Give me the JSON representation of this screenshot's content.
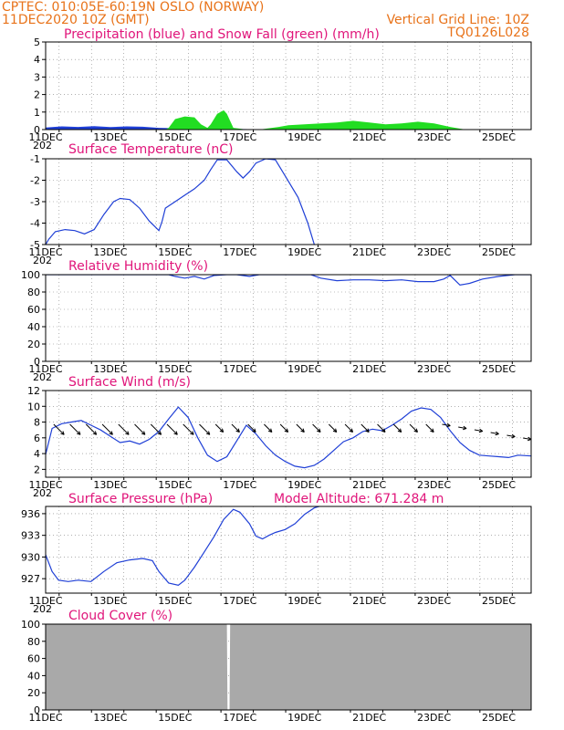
{
  "header": {
    "line1": "CPTEC:  010:05E-60:19N  OSLO (NORWAY)",
    "line2": "11DEC2020 10Z (GMT)",
    "grid_note": "Vertical Grid Line: 10Z",
    "model_code": "TQ0126L028"
  },
  "colors": {
    "header": "#e8731a",
    "title": "#e0157a",
    "line": "#1f3fd6",
    "snow": "#22dd22",
    "cloud": "#a9a9a9"
  },
  "x_axis": {
    "tick_labels": [
      "11DEC",
      "13DEC",
      "15DEC",
      "17DEC",
      "19DEC",
      "21DEC",
      "23DEC",
      "25DEC"
    ],
    "year_fragment": "202"
  },
  "chart_data": [
    {
      "type": "area",
      "title": "Precipitation (blue) and Snow Fall (green) (mm/h)",
      "ylim": [
        0,
        5
      ],
      "yticks": [
        "0",
        "1",
        "2",
        "3",
        "4",
        "5"
      ],
      "x_unit": "days since 11DEC 00Z",
      "series": [
        {
          "name": "Precipitation",
          "x": [
            0,
            0.5,
            1,
            1.5,
            2,
            2.5,
            3,
            3.5,
            4,
            4.5,
            5,
            5.5,
            6,
            6.5,
            7,
            7.5,
            8,
            8.5,
            9,
            9.5,
            10,
            10.5,
            11,
            11.5,
            12,
            12.5,
            13,
            13.5,
            14,
            14.5,
            15
          ],
          "values": [
            0.12,
            0.18,
            0.15,
            0.2,
            0.14,
            0.18,
            0.16,
            0.1,
            0.08,
            0.05,
            0.05,
            0.04,
            0.03,
            0.02,
            0.02,
            0.04,
            0.06,
            0.05,
            0.05,
            0.06,
            0.05,
            0.04,
            0.05,
            0.06,
            0.05,
            0.02,
            0.01,
            0,
            0,
            0,
            0
          ]
        },
        {
          "name": "Snow Fall",
          "x": [
            0,
            3.7,
            3.8,
            4,
            4.3,
            4.6,
            4.8,
            5,
            5.1,
            5.3,
            5.5,
            5.6,
            5.8,
            6,
            6.2,
            6.4,
            6.6,
            7.2,
            7.5,
            8,
            8.5,
            9,
            9.5,
            10,
            10.5,
            11,
            11.5,
            12,
            12.5,
            12.8,
            13,
            15
          ],
          "values": [
            0,
            0,
            0.1,
            0.6,
            0.75,
            0.7,
            0.3,
            0.1,
            0.3,
            0.9,
            1.1,
            0.9,
            0.1,
            0.05,
            0,
            0,
            0,
            0.15,
            0.25,
            0.3,
            0.35,
            0.4,
            0.5,
            0.4,
            0.3,
            0.35,
            0.45,
            0.35,
            0.15,
            0.05,
            0,
            0
          ]
        }
      ]
    },
    {
      "type": "line",
      "title": "Surface Temperature (nC)",
      "ylim": [
        -5,
        -1
      ],
      "yticks": [
        "-5",
        "-4",
        "-3",
        "-2",
        "-1"
      ],
      "x_unit": "days since 11DEC 00Z",
      "series": [
        {
          "name": "Temperature",
          "x": [
            0,
            0.1,
            0.3,
            0.6,
            0.9,
            1.2,
            1.5,
            1.8,
            2.1,
            2.3,
            2.6,
            2.9,
            3.2,
            3.4,
            3.5,
            3.6,
            3.7,
            4.0,
            4.3,
            4.6,
            4.9,
            5.1,
            5.3,
            5.6,
            5.9,
            6.1,
            6.3,
            6.5,
            6.8,
            7.1,
            7.4,
            7.8,
            8.1,
            8.3
          ],
          "values": [
            -5.0,
            -4.75,
            -4.4,
            -4.3,
            -4.35,
            -4.5,
            -4.3,
            -3.6,
            -3.0,
            -2.85,
            -2.9,
            -3.3,
            -3.9,
            -4.2,
            -4.35,
            -3.9,
            -3.3,
            -3.0,
            -2.7,
            -2.4,
            -2.0,
            -1.5,
            -1.05,
            -1.05,
            -1.6,
            -1.9,
            -1.6,
            -1.2,
            -1.0,
            -1.05,
            -1.8,
            -2.8,
            -4.0,
            -5.0
          ]
        }
      ]
    },
    {
      "type": "line",
      "title": "Relative Humidity (%)",
      "ylim": [
        0,
        100
      ],
      "yticks": [
        "0",
        "20",
        "40",
        "60",
        "80",
        "100"
      ],
      "x_unit": "days since 11DEC 00Z",
      "series": [
        {
          "name": "Relative Humidity",
          "x": [
            0,
            3.8,
            4,
            4.3,
            4.6,
            4.9,
            5.2,
            5.6,
            5.9,
            6.3,
            6.6,
            7,
            8.2,
            8.5,
            9,
            9.5,
            10,
            10.5,
            11,
            11.5,
            12,
            12.3,
            12.5,
            12.8,
            13.1,
            13.5,
            14,
            14.5,
            15
          ],
          "values": [
            100,
            100,
            98,
            96,
            98,
            95,
            99,
            100,
            100,
            98,
            100,
            100,
            100,
            96,
            93,
            94,
            94,
            93,
            94,
            92,
            92,
            95,
            99,
            88,
            90,
            95,
            98,
            100,
            100
          ]
        }
      ]
    },
    {
      "type": "line",
      "title": "Surface Wind (m/s)",
      "ylim": [
        1,
        12
      ],
      "yticks": [
        "2",
        "4",
        "6",
        "8",
        "10",
        "12"
      ],
      "x_unit": "days since 11DEC 00Z",
      "series": [
        {
          "name": "Wind speed",
          "x": [
            0,
            0.2,
            0.5,
            0.8,
            1.1,
            1.4,
            1.7,
            2,
            2.3,
            2.6,
            2.9,
            3.2,
            3.5,
            3.8,
            4.1,
            4.4,
            4.7,
            5.0,
            5.3,
            5.6,
            5.9,
            6.2,
            6.5,
            6.8,
            7.1,
            7.4,
            7.7,
            8.0,
            8.3,
            8.6,
            8.9,
            9.2,
            9.5,
            9.8,
            10.1,
            10.4,
            10.7,
            11,
            11.3,
            11.6,
            11.9,
            12.2,
            12.5,
            12.8,
            13.1,
            13.4,
            13.7,
            14.0,
            14.3,
            14.6,
            15
          ],
          "values": [
            3.9,
            7.2,
            7.8,
            8.0,
            8.2,
            7.6,
            7.0,
            6.2,
            5.4,
            5.6,
            5.2,
            5.8,
            6.8,
            8.4,
            9.9,
            8.6,
            6.0,
            3.8,
            3.0,
            3.6,
            5.6,
            7.6,
            6.5,
            5.0,
            3.8,
            3.0,
            2.4,
            2.2,
            2.5,
            3.3,
            4.4,
            5.5,
            6.0,
            6.8,
            7.1,
            6.9,
            7.6,
            8.4,
            9.4,
            9.8,
            9.6,
            8.6,
            6.9,
            5.4,
            4.4,
            3.8,
            3.7,
            3.6,
            3.5,
            3.8,
            3.7
          ]
        }
      ]
    },
    {
      "type": "line",
      "title": "Surface Pressure (hPa)",
      "model_altitude": "Model Altitude: 671.284 m",
      "ylim": [
        925,
        937
      ],
      "yticks": [
        "927",
        "930",
        "933",
        "936"
      ],
      "x_unit": "days since 11DEC 00Z",
      "series": [
        {
          "name": "Pressure",
          "x": [
            0,
            0.2,
            0.4,
            0.7,
            1.0,
            1.4,
            1.8,
            2.2,
            2.6,
            3.0,
            3.3,
            3.5,
            3.8,
            4.1,
            4.3,
            4.6,
            4.9,
            5.2,
            5.5,
            5.8,
            6.0,
            6.3,
            6.5,
            6.7,
            6.9,
            7.1,
            7.4,
            7.7,
            8.0,
            8.3,
            8.6,
            9.0
          ],
          "values": [
            930.3,
            928.0,
            926.8,
            926.6,
            926.8,
            926.6,
            928.0,
            929.2,
            929.6,
            929.8,
            929.5,
            928.0,
            926.4,
            926.1,
            926.8,
            928.6,
            930.7,
            932.8,
            935.2,
            936.6,
            936.2,
            934.6,
            932.9,
            932.5,
            933.0,
            933.4,
            933.8,
            934.6,
            935.9,
            936.8,
            937.2,
            937.4
          ]
        }
      ]
    },
    {
      "type": "area",
      "title": "Cloud Cover (%)",
      "ylim": [
        0,
        100
      ],
      "yticks": [
        "0",
        "20",
        "40",
        "60",
        "80",
        "100"
      ],
      "x_unit": "days since 11DEC 00Z",
      "series": [
        {
          "name": "Cloud cover",
          "x": [
            0,
            5.6,
            5.62,
            5.68,
            5.7,
            15
          ],
          "values": [
            100,
            100,
            0,
            0,
            100,
            100
          ]
        }
      ]
    }
  ]
}
